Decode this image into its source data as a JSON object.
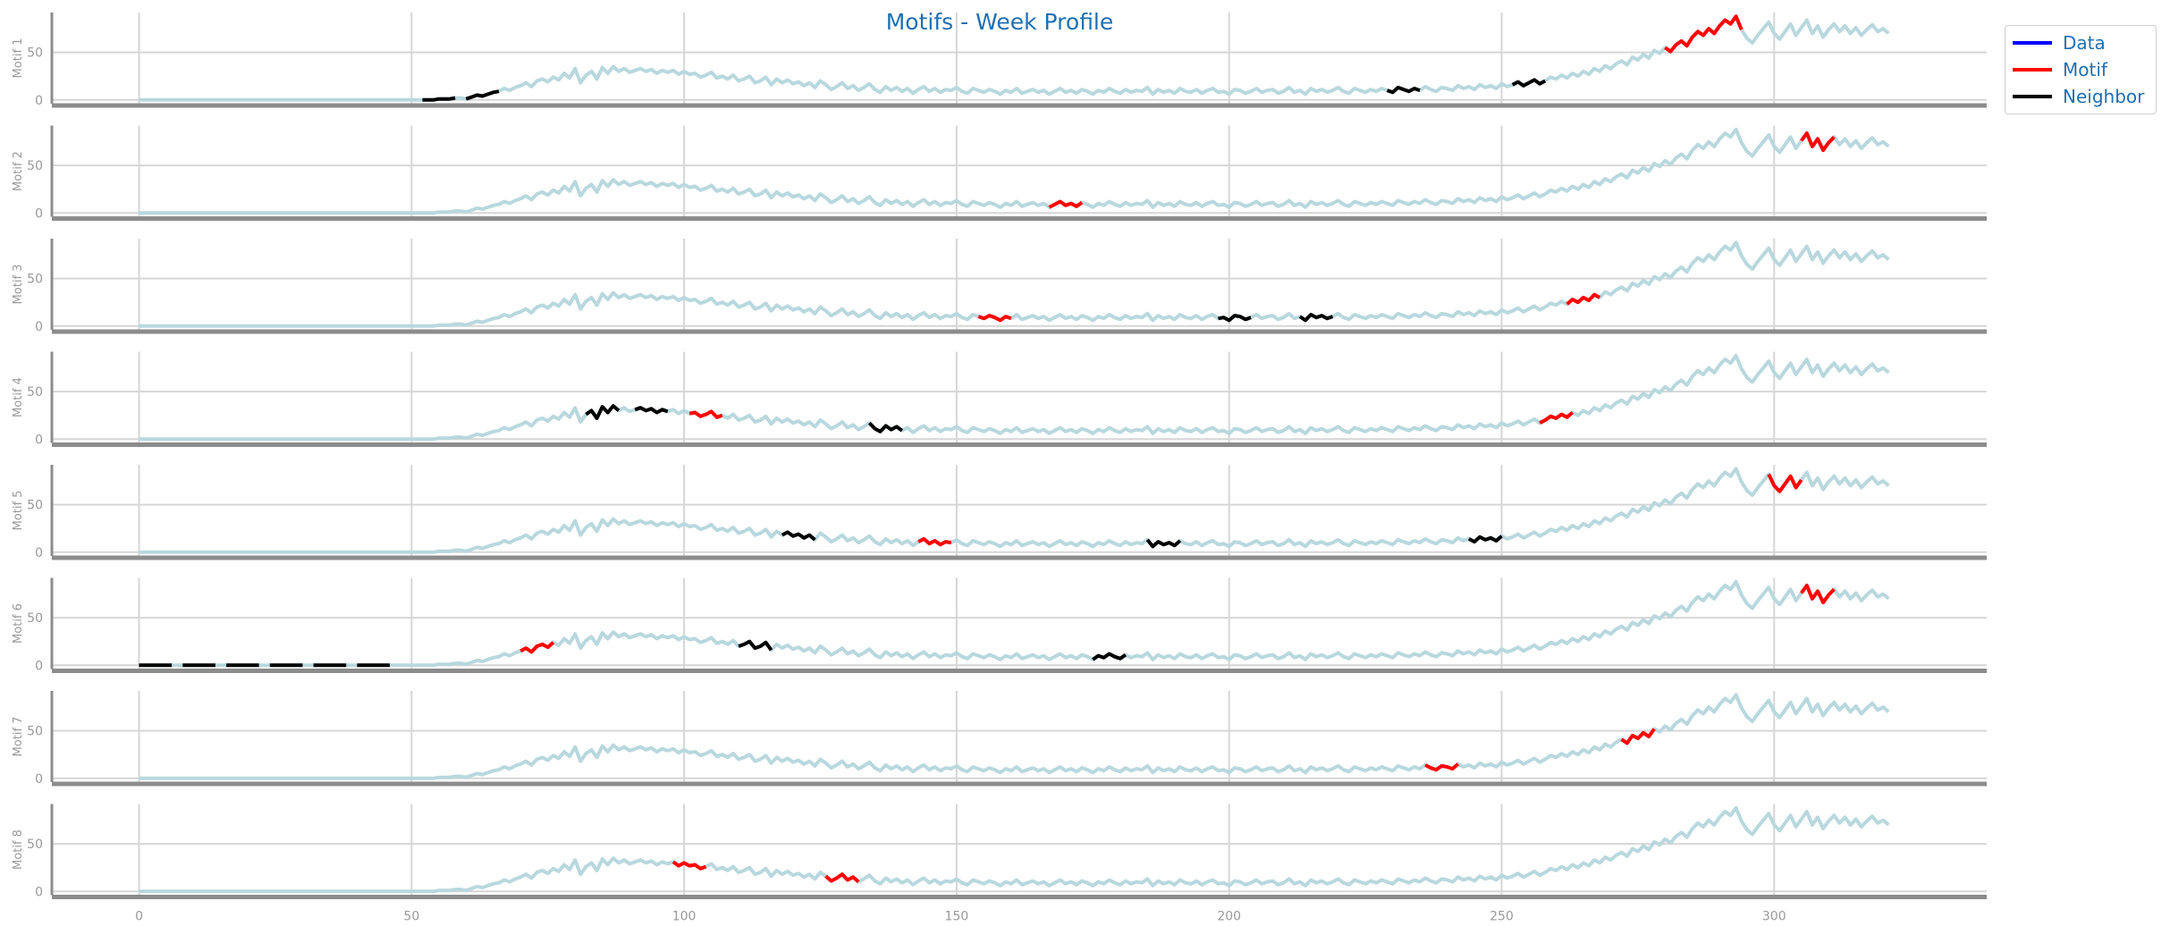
{
  "chart_data": {
    "type": "line",
    "title": "Motifs - Week Profile",
    "xlim": [
      -16,
      339
    ],
    "ylim": [
      -4,
      92
    ],
    "x_ticks": [
      0,
      50,
      100,
      150,
      200,
      250,
      300
    ],
    "y_ticks": [
      0,
      50
    ],
    "panel_labels": [
      "Motif 1",
      "Motif 2",
      "Motif 3",
      "Motif 4",
      "Motif 5",
      "Motif 6",
      "Motif 7",
      "Motif 8"
    ],
    "grid": true,
    "legend": {
      "placement": "upper right outside",
      "entries": [
        {
          "label": "Data",
          "color": "#0000ff"
        },
        {
          "label": "Motif",
          "color": "#ff0000"
        },
        {
          "label": "Neighbor",
          "color": "#000000"
        }
      ]
    },
    "data_color": "#b8d8de",
    "series": {
      "data": {
        "x_start": 0,
        "values": [
          0,
          0,
          0,
          0,
          0,
          0,
          0,
          0,
          0,
          0,
          0,
          0,
          0,
          0,
          0,
          0,
          0,
          0,
          0,
          0,
          0,
          0,
          0,
          0,
          0,
          0,
          0,
          0,
          0,
          0,
          0,
          0,
          0,
          0,
          0,
          0,
          0,
          0,
          0,
          0,
          0,
          0,
          0,
          0,
          0,
          0,
          0,
          0,
          0,
          0,
          0,
          0,
          0,
          0,
          0,
          1,
          1,
          1,
          2,
          2,
          1,
          3,
          5,
          4,
          6,
          8,
          9,
          12,
          10,
          13,
          15,
          18,
          14,
          20,
          22,
          19,
          24,
          21,
          28,
          23,
          33,
          18,
          26,
          30,
          22,
          34,
          28,
          35,
          30,
          33,
          29,
          31,
          33,
          30,
          32,
          28,
          31,
          29,
          31,
          27,
          30,
          27,
          28,
          24,
          26,
          29,
          23,
          25,
          22,
          26,
          20,
          22,
          25,
          18,
          20,
          24,
          16,
          22,
          18,
          21,
          17,
          19,
          15,
          18,
          13,
          20,
          16,
          11,
          14,
          18,
          12,
          15,
          10,
          13,
          17,
          11,
          8,
          14,
          10,
          13,
          9,
          12,
          7,
          11,
          14,
          9,
          12,
          8,
          11,
          10,
          13,
          9,
          7,
          12,
          10,
          8,
          11,
          9,
          6,
          10,
          8,
          12,
          7,
          9,
          11,
          8,
          10,
          6,
          9,
          12,
          8,
          10,
          7,
          11,
          9,
          6,
          10,
          8,
          12,
          9,
          7,
          11,
          8,
          10,
          9,
          13,
          6,
          11,
          8,
          10,
          7,
          12,
          9,
          8,
          11,
          7,
          10,
          12,
          8,
          9,
          6,
          11,
          10,
          7,
          9,
          12,
          8,
          10,
          11,
          7,
          9,
          13,
          8,
          10,
          6,
          12,
          9,
          11,
          8,
          10,
          13,
          9,
          7,
          12,
          10,
          8,
          11,
          9,
          12,
          10,
          8,
          13,
          11,
          9,
          12,
          10,
          14,
          11,
          9,
          13,
          12,
          10,
          15,
          12,
          14,
          11,
          16,
          13,
          15,
          12,
          17,
          14,
          16,
          19,
          15,
          18,
          21,
          17,
          20,
          24,
          22,
          26,
          23,
          28,
          25,
          30,
          27,
          33,
          30,
          36,
          33,
          38,
          41,
          37,
          45,
          42,
          48,
          44,
          52,
          49,
          55,
          51,
          58,
          62,
          57,
          66,
          72,
          68,
          75,
          70,
          78,
          84,
          80,
          88,
          74,
          65,
          60,
          68,
          75,
          82,
          70,
          64,
          72,
          80,
          68,
          76,
          84,
          70,
          78,
          66,
          74,
          80,
          72,
          78,
          70,
          76,
          68,
          74,
          79,
          72,
          75,
          70
        ],
        "comment": "Low-detail reconstruction of the light blue background series"
      },
      "panels": [
        {
          "motif": [
            [
              280,
              294
            ]
          ],
          "neighbor": [
            [
              52,
              58
            ],
            [
              60,
              66
            ],
            [
              229,
              235
            ],
            [
              252,
              258
            ]
          ]
        },
        {
          "motif": [
            [
              167,
              173
            ],
            [
              305,
              311
            ]
          ],
          "neighbor": []
        },
        {
          "motif": [
            [
              154,
              160
            ],
            [
              262,
              268
            ]
          ],
          "neighbor": [
            [
              198,
              204
            ],
            [
              213,
              219
            ]
          ]
        },
        {
          "motif": [
            [
              101,
              107
            ],
            [
              257,
              263
            ]
          ],
          "neighbor": [
            [
              82,
              88
            ],
            [
              91,
              97
            ],
            [
              134,
              140
            ]
          ]
        },
        {
          "motif": [
            [
              143,
              149
            ],
            [
              299,
              305
            ]
          ],
          "neighbor": [
            [
              118,
              124
            ],
            [
              185,
              191
            ],
            [
              244,
              250
            ]
          ]
        },
        {
          "motif": [
            [
              70,
              76
            ],
            [
              305,
              311
            ]
          ],
          "neighbor": [
            [
              0,
              6
            ],
            [
              8,
              14
            ],
            [
              16,
              22
            ],
            [
              24,
              30
            ],
            [
              32,
              38
            ],
            [
              40,
              46
            ],
            [
              110,
              116
            ],
            [
              175,
              181
            ]
          ]
        },
        {
          "motif": [
            [
              236,
              242
            ],
            [
              272,
              278
            ]
          ],
          "neighbor": []
        },
        {
          "motif": [
            [
              98,
              104
            ],
            [
              126,
              132
            ]
          ],
          "neighbor": []
        }
      ]
    }
  }
}
